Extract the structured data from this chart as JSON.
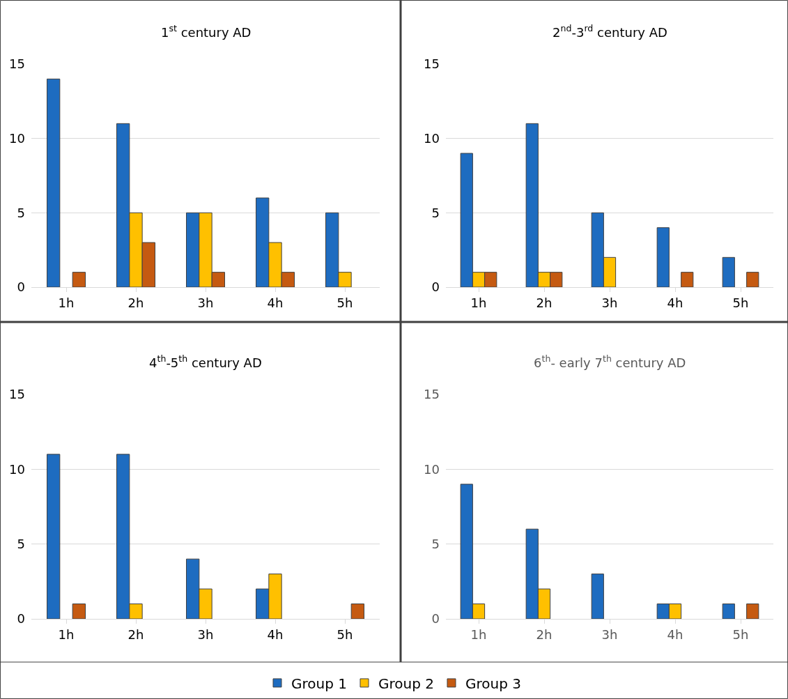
{
  "chart_data": [
    {
      "type": "bar",
      "title": "1$^{st}$ century AD",
      "categories": [
        "1h",
        "2h",
        "3h",
        "4h",
        "5h"
      ],
      "ylim": [
        0,
        15
      ],
      "yticks": [
        0,
        5,
        10,
        15
      ],
      "grid": "y",
      "legend": "bottom",
      "series": [
        {
          "name": "Group 1",
          "color": "#1e6cc0",
          "values": [
            14,
            11,
            5,
            6,
            5
          ]
        },
        {
          "name": "Group 2",
          "color": "#ffc000",
          "values": [
            null,
            5,
            5,
            3,
            1
          ]
        },
        {
          "name": "Group 3",
          "color": "#c55a11",
          "values": [
            1,
            3,
            1,
            1,
            null
          ]
        }
      ]
    },
    {
      "type": "bar",
      "title": "2$^{nd}$-3$^{rd}$ century AD",
      "categories": [
        "1h",
        "2h",
        "3h",
        "4h",
        "5h"
      ],
      "ylim": [
        0,
        15
      ],
      "yticks": [
        0,
        5,
        10,
        15
      ],
      "grid": "y",
      "series": [
        {
          "color": "#1e6cc0",
          "values": [
            9,
            11,
            5,
            4,
            2
          ]
        },
        {
          "color": "#ffc000",
          "values": [
            1,
            1,
            2,
            null,
            null
          ]
        },
        {
          "color": "#c55a11",
          "values": [
            1,
            1,
            null,
            1,
            1
          ]
        }
      ]
    },
    {
      "type": "bar",
      "title": "4$^{th}$-5$^{th}$ century AD",
      "categories": [
        "1h",
        "2h",
        "3h",
        "4h",
        "5h"
      ],
      "ylim": [
        0,
        15
      ],
      "yticks": [
        0,
        5,
        10,
        15
      ],
      "grid": "y",
      "series": [
        {
          "color": "#1e6cc0",
          "values": [
            11,
            11,
            4,
            2,
            null
          ]
        },
        {
          "color": "#ffc000",
          "values": [
            null,
            1,
            2,
            3,
            null
          ]
        },
        {
          "color": "#c55a11",
          "values": [
            1,
            null,
            null,
            null,
            1
          ]
        }
      ]
    },
    {
      "type": "bar",
      "title": "6$^{th}$- early 7$^{th}$ century AD",
      "categories": [
        "1h",
        "2h",
        "3h",
        "4h",
        "5h"
      ],
      "ylim": [
        0,
        15
      ],
      "yticks": [
        0,
        5,
        10,
        15
      ],
      "grid": "y",
      "series": [
        {
          "color": "#1e6cc0",
          "values": [
            9,
            6,
            3,
            1,
            1
          ]
        },
        {
          "color": "#ffc000",
          "values": [
            1,
            2,
            null,
            1,
            null
          ]
        },
        {
          "color": "#c55a11",
          "values": [
            null,
            null,
            null,
            null,
            1
          ]
        }
      ]
    }
  ]
}
